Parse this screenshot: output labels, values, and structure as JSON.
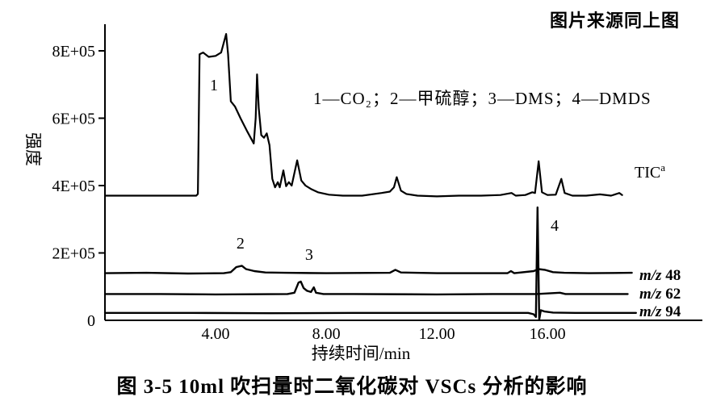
{
  "figure": {
    "source_note": "图片来源同上图",
    "caption": "图 3-5  10ml 吹扫量时二氧化碳对 VSCs 分析的影响"
  },
  "chart_data": {
    "type": "line",
    "title": "",
    "xlabel": "持续时间/min",
    "ylabel": "强度",
    "legend_text": "1—CO₂；2—甲硫醇；3—DMS；4—DMDS",
    "grid": false,
    "colors": {
      "trace": "#000000",
      "background": "#ffffff",
      "text": "#000000"
    },
    "xlim": [
      0,
      21.6
    ],
    "ylim": [
      0,
      880000
    ],
    "x_ticks": [
      4,
      8,
      12,
      16
    ],
    "x_tick_labels": [
      "4.00",
      "8.00",
      "12.00",
      "16.00"
    ],
    "y_ticks": [
      0,
      200000,
      400000,
      600000,
      800000
    ],
    "y_tick_labels": [
      "0",
      "2E+05",
      "4E+05",
      "6E+05",
      "8E+05"
    ],
    "series": [
      {
        "name": "TIC",
        "label": "TIC",
        "label_superscript": "a",
        "points": [
          [
            0,
            370000
          ],
          [
            3.3,
            370000
          ],
          [
            3.36,
            375000
          ],
          [
            3.42,
            790000
          ],
          [
            3.55,
            795000
          ],
          [
            3.75,
            782000
          ],
          [
            4.0,
            785000
          ],
          [
            4.2,
            795000
          ],
          [
            4.38,
            850000
          ],
          [
            4.45,
            790000
          ],
          [
            4.55,
            650000
          ],
          [
            4.7,
            635000
          ],
          [
            4.9,
            600000
          ],
          [
            5.15,
            560000
          ],
          [
            5.38,
            525000
          ],
          [
            5.45,
            600000
          ],
          [
            5.5,
            730000
          ],
          [
            5.56,
            630000
          ],
          [
            5.65,
            550000
          ],
          [
            5.75,
            542000
          ],
          [
            5.85,
            555000
          ],
          [
            5.95,
            520000
          ],
          [
            6.05,
            420000
          ],
          [
            6.15,
            395000
          ],
          [
            6.25,
            410000
          ],
          [
            6.32,
            395000
          ],
          [
            6.45,
            445000
          ],
          [
            6.55,
            398000
          ],
          [
            6.65,
            410000
          ],
          [
            6.75,
            400000
          ],
          [
            6.95,
            475000
          ],
          [
            7.1,
            415000
          ],
          [
            7.25,
            400000
          ],
          [
            7.45,
            390000
          ],
          [
            7.7,
            380000
          ],
          [
            8.1,
            373000
          ],
          [
            8.6,
            370000
          ],
          [
            9.3,
            370000
          ],
          [
            10.0,
            378000
          ],
          [
            10.3,
            382000
          ],
          [
            10.45,
            395000
          ],
          [
            10.55,
            425000
          ],
          [
            10.7,
            385000
          ],
          [
            10.9,
            375000
          ],
          [
            11.3,
            370000
          ],
          [
            12.0,
            368000
          ],
          [
            12.8,
            370000
          ],
          [
            13.6,
            370000
          ],
          [
            14.3,
            372000
          ],
          [
            14.7,
            378000
          ],
          [
            14.85,
            370000
          ],
          [
            15.2,
            372000
          ],
          [
            15.45,
            380000
          ],
          [
            15.55,
            378000
          ],
          [
            15.68,
            472000
          ],
          [
            15.8,
            380000
          ],
          [
            16.0,
            372000
          ],
          [
            16.3,
            373000
          ],
          [
            16.5,
            420000
          ],
          [
            16.62,
            378000
          ],
          [
            16.9,
            370000
          ],
          [
            17.4,
            370000
          ],
          [
            17.9,
            374000
          ],
          [
            18.3,
            370000
          ],
          [
            18.6,
            378000
          ],
          [
            18.7,
            372000
          ]
        ]
      },
      {
        "name": "m/z 48",
        "label_italic": "m/z",
        "label_value": "48",
        "points": [
          [
            0,
            140000
          ],
          [
            1.5,
            141000
          ],
          [
            3.0,
            139000
          ],
          [
            4.3,
            140000
          ],
          [
            4.55,
            143000
          ],
          [
            4.75,
            158000
          ],
          [
            4.95,
            162000
          ],
          [
            5.1,
            152000
          ],
          [
            5.4,
            146000
          ],
          [
            5.8,
            142000
          ],
          [
            6.5,
            141000
          ],
          [
            8.0,
            140000
          ],
          [
            10.3,
            141000
          ],
          [
            10.5,
            150000
          ],
          [
            10.7,
            142000
          ],
          [
            12.0,
            140000
          ],
          [
            14.55,
            140000
          ],
          [
            14.68,
            146000
          ],
          [
            14.8,
            140000
          ],
          [
            15.5,
            146000
          ],
          [
            15.68,
            152000
          ],
          [
            15.9,
            150000
          ],
          [
            16.2,
            143000
          ],
          [
            16.6,
            141000
          ],
          [
            17.5,
            140000
          ],
          [
            19.05,
            141000
          ]
        ]
      },
      {
        "name": "m/z 62",
        "label_italic": "m/z",
        "label_value": "62",
        "points": [
          [
            0,
            78000
          ],
          [
            2.0,
            78000
          ],
          [
            4.0,
            77000
          ],
          [
            6.6,
            78000
          ],
          [
            6.85,
            82000
          ],
          [
            7.0,
            112000
          ],
          [
            7.08,
            115000
          ],
          [
            7.18,
            96000
          ],
          [
            7.3,
            88000
          ],
          [
            7.45,
            84000
          ],
          [
            7.55,
            98000
          ],
          [
            7.63,
            82000
          ],
          [
            7.9,
            78000
          ],
          [
            9.0,
            78000
          ],
          [
            12.0,
            77000
          ],
          [
            14.0,
            78000
          ],
          [
            15.6,
            78000
          ],
          [
            16.45,
            82000
          ],
          [
            16.65,
            78000
          ],
          [
            18.9,
            78000
          ]
        ]
      },
      {
        "name": "m/z 94",
        "label_italic": "m/z",
        "label_value": "94",
        "points": [
          [
            0,
            22000
          ],
          [
            3.0,
            22000
          ],
          [
            6.0,
            21000
          ],
          [
            9.0,
            22000
          ],
          [
            12.0,
            22000
          ],
          [
            15.3,
            22000
          ],
          [
            15.5,
            18000
          ],
          [
            15.58,
            10000
          ],
          [
            15.64,
            335000
          ],
          [
            15.7,
            2000
          ],
          [
            15.76,
            30000
          ],
          [
            15.9,
            26000
          ],
          [
            16.2,
            23000
          ],
          [
            17.0,
            22000
          ],
          [
            19.2,
            22000
          ]
        ]
      }
    ],
    "peaks": [
      {
        "label": "1",
        "compound": "CO₂",
        "t": 3.94,
        "intensity": 683000
      },
      {
        "label": "2",
        "compound": "甲硫醇",
        "t": 4.9,
        "intensity": 213000
      },
      {
        "label": "3",
        "compound": "DMS",
        "t": 7.38,
        "intensity": 180000
      },
      {
        "label": "4",
        "compound": "DMDS",
        "t": 16.26,
        "intensity": 266000
      }
    ]
  }
}
